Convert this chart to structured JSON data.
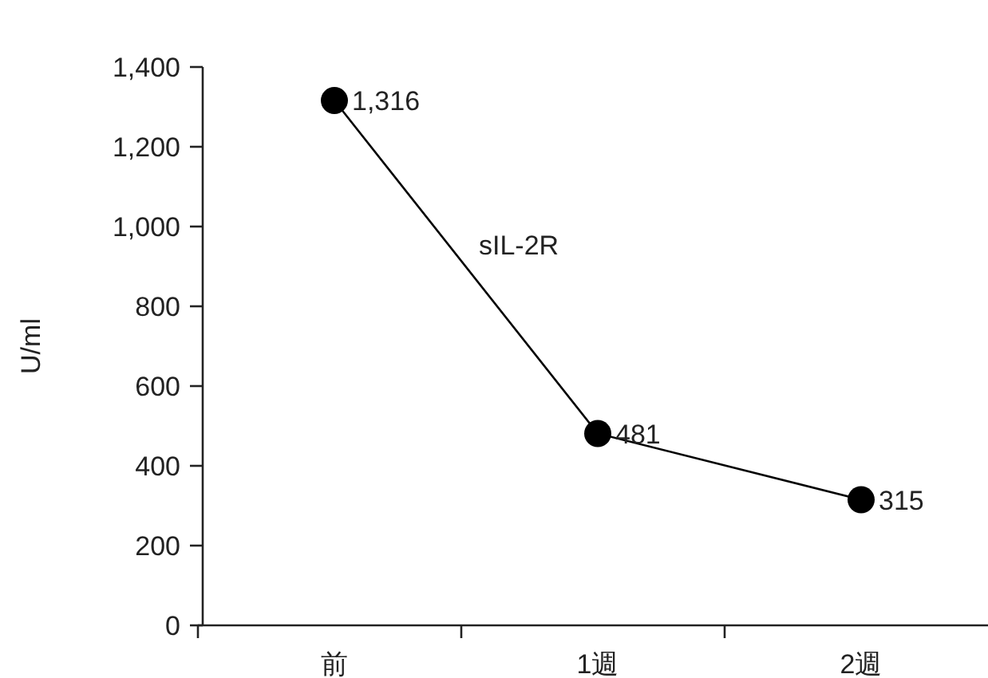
{
  "chart_data": {
    "type": "line",
    "ylabel": "U/ml",
    "categories": [
      "前",
      "1週",
      "2週"
    ],
    "series": [
      {
        "name": "sIL-2R",
        "color": "#000000",
        "values": [
          1316,
          481,
          315
        ],
        "value_labels": [
          "1,316",
          "481",
          "315"
        ]
      }
    ],
    "ylim": [
      0,
      1400
    ],
    "yticks": [
      {
        "value": 0,
        "label": "0"
      },
      {
        "value": 200,
        "label": "200"
      },
      {
        "value": 400,
        "label": "400"
      },
      {
        "value": 600,
        "label": "600"
      },
      {
        "value": 800,
        "label": "800"
      },
      {
        "value": 1000,
        "label": "1,000"
      },
      {
        "value": 1200,
        "label": "1,200"
      },
      {
        "value": 1400,
        "label": "1,400"
      }
    ],
    "marker": "circle",
    "line_style": "solid"
  }
}
